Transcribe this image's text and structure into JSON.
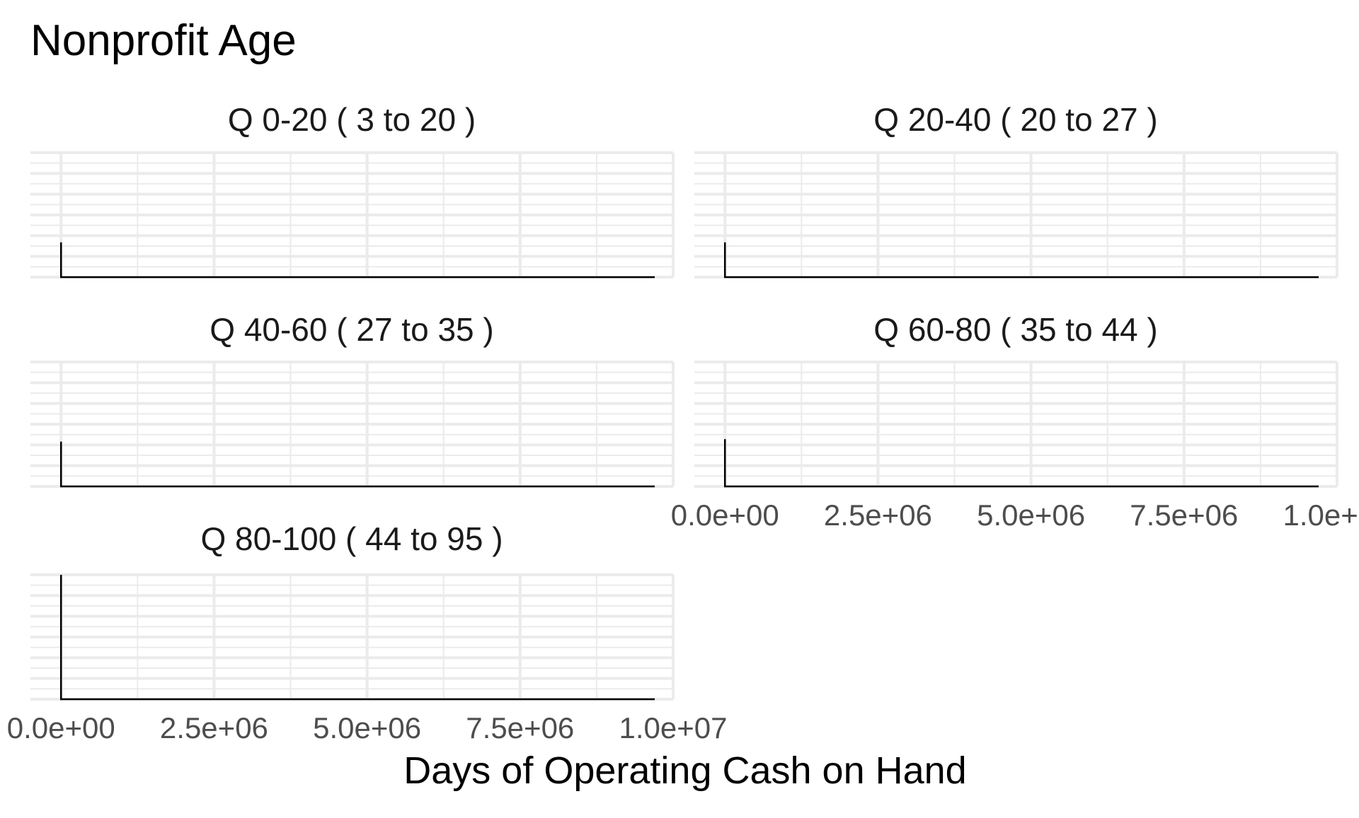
{
  "chart_data": {
    "type": "area",
    "title": "Nonprofit Age",
    "xlabel": "Days of Operating Cash on Hand",
    "ylabel": "",
    "xlim": [
      -500000,
      10000000
    ],
    "x_ticks": [
      0,
      2500000,
      5000000,
      7500000,
      10000000
    ],
    "x_tick_labels": [
      "0.0e+00",
      "2.5e+06",
      "5.0e+06",
      "7.5e+06",
      "1.0e+07"
    ],
    "grid": true,
    "panels": [
      {
        "label": "Q 0-20   ( 3 to 20 )",
        "x": [
          0,
          0,
          9700000
        ],
        "y": [
          0.28,
          0,
          0
        ]
      },
      {
        "label": "Q 20-40   ( 20 to 27 )",
        "x": [
          0,
          0,
          9700000
        ],
        "y": [
          0.28,
          0,
          0
        ]
      },
      {
        "label": "Q 40-60   ( 27 to 35 )",
        "x": [
          0,
          0,
          9700000
        ],
        "y": [
          0.36,
          0,
          0
        ]
      },
      {
        "label": "Q 60-80   ( 35 to 44 )",
        "x": [
          0,
          0,
          9700000
        ],
        "y": [
          0.38,
          0,
          0
        ]
      },
      {
        "label": "Q 80-100   ( 44 to 95 )",
        "x": [
          0,
          0,
          9700000
        ],
        "y": [
          1.0,
          0,
          0
        ]
      }
    ]
  }
}
